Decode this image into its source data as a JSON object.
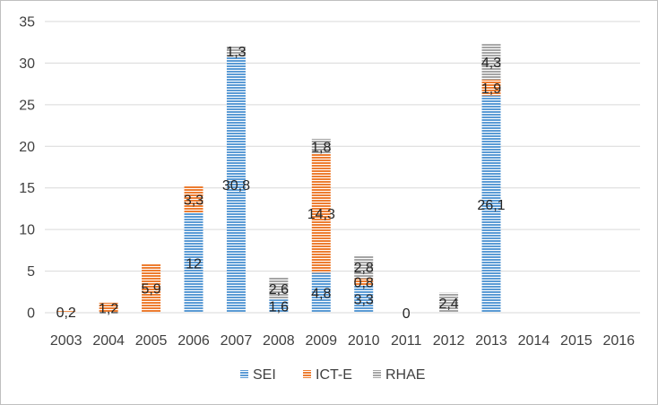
{
  "chart_data": {
    "type": "bar",
    "stacked": true,
    "title": "",
    "xlabel": "",
    "ylabel": "",
    "ylim": [
      0,
      35
    ],
    "ytick_step": 5,
    "grid": true,
    "legend_position": "bottom",
    "categories": [
      "2003",
      "2004",
      "2005",
      "2006",
      "2007",
      "2008",
      "2009",
      "2010",
      "2011",
      "2012",
      "2013",
      "2014",
      "2015",
      "2016"
    ],
    "series": [
      {
        "name": "SEI",
        "color": "#5b9bd5",
        "pattern": "horizontal-stripes",
        "values": [
          0,
          0,
          0,
          12,
          30.8,
          1.6,
          4.8,
          3.3,
          0,
          0,
          26.1,
          0,
          0,
          0
        ]
      },
      {
        "name": "ICT-E",
        "color": "#ed7d31",
        "pattern": "horizontal-stripes",
        "values": [
          0.2,
          1.2,
          5.9,
          3.3,
          0,
          0,
          14.3,
          0.8,
          0,
          0,
          1.9,
          0,
          0,
          0
        ]
      },
      {
        "name": "RHAE",
        "color": "#a5a5a5",
        "pattern": "horizontal-stripes",
        "values": [
          0,
          0,
          0,
          0,
          1.3,
          2.6,
          1.8,
          2.8,
          0,
          2.4,
          4.3,
          0,
          0,
          0
        ]
      }
    ],
    "data_labels": [
      {
        "category": "2003",
        "series": "ICT-E",
        "text": "0,2"
      },
      {
        "category": "2004",
        "series": "ICT-E",
        "text": "1,2"
      },
      {
        "category": "2005",
        "series": "ICT-E",
        "text": "5,9"
      },
      {
        "category": "2006",
        "series": "SEI",
        "text": "12"
      },
      {
        "category": "2006",
        "series": "ICT-E",
        "text": "3,3"
      },
      {
        "category": "2007",
        "series": "SEI",
        "text": "30,8"
      },
      {
        "category": "2007",
        "series": "RHAE",
        "text": "1,3"
      },
      {
        "category": "2008",
        "series": "SEI",
        "text": "1,6"
      },
      {
        "category": "2008",
        "series": "RHAE",
        "text": "2,6"
      },
      {
        "category": "2009",
        "series": "SEI",
        "text": "4,8"
      },
      {
        "category": "2009",
        "series": "ICT-E",
        "text": "14,3"
      },
      {
        "category": "2009",
        "series": "RHAE",
        "text": "1,8"
      },
      {
        "category": "2010",
        "series": "SEI",
        "text": "3,3"
      },
      {
        "category": "2010",
        "series": "ICT-E",
        "text": "0,8"
      },
      {
        "category": "2010",
        "series": "RHAE",
        "text": "2,8"
      },
      {
        "category": "2011",
        "series": "SEI",
        "text": "0"
      },
      {
        "category": "2012",
        "series": "RHAE",
        "text": "2,4"
      },
      {
        "category": "2013",
        "series": "SEI",
        "text": "26,1"
      },
      {
        "category": "2013",
        "series": "ICT-E",
        "text": "1,9"
      },
      {
        "category": "2013",
        "series": "RHAE",
        "text": "4,3"
      }
    ]
  }
}
